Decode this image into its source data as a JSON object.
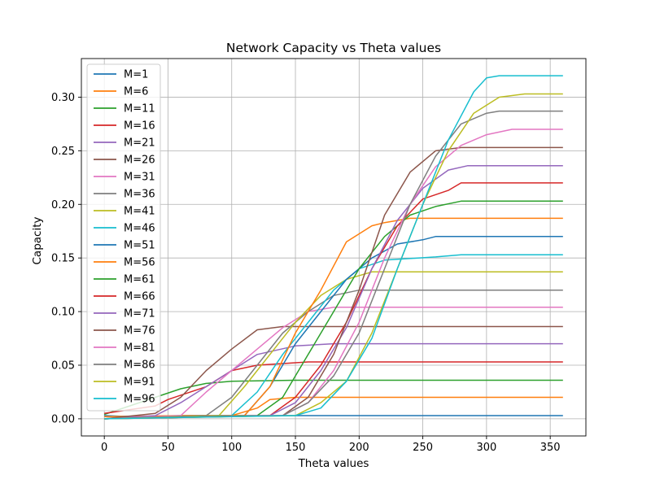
{
  "chart_data": {
    "type": "line",
    "title": "Network Capacity vs Theta values",
    "xlabel": "Theta values",
    "ylabel": "Capacity",
    "xlim": [
      -18,
      378
    ],
    "ylim": [
      -0.016,
      0.336
    ],
    "xticks": [
      0,
      50,
      100,
      150,
      200,
      250,
      300,
      350
    ],
    "xtick_labels": [
      "0",
      "50",
      "100",
      "150",
      "200",
      "250",
      "300",
      "350"
    ],
    "yticks": [
      0.0,
      0.05,
      0.1,
      0.15,
      0.2,
      0.25,
      0.3
    ],
    "ytick_labels": [
      "0.00",
      "0.05",
      "0.10",
      "0.15",
      "0.20",
      "0.25",
      "0.30"
    ],
    "grid": true,
    "legend_position": "upper-left",
    "colors": [
      "#1f77b4",
      "#ff7f0e",
      "#2ca02c",
      "#d62728",
      "#9467bd",
      "#8c564b",
      "#e377c2",
      "#7f7f7f",
      "#bcbd22",
      "#17becf"
    ],
    "series": [
      {
        "name": "M=1",
        "color": "#1f77b4",
        "points": [
          [
            0,
            0.003
          ],
          [
            20,
            0.002
          ],
          [
            60,
            0.003
          ],
          [
            120,
            0.003
          ],
          [
            200,
            0.003
          ],
          [
            360,
            0.003
          ]
        ]
      },
      {
        "name": "M=6",
        "color": "#ff7f0e",
        "points": [
          [
            0,
            0.002
          ],
          [
            60,
            0.003
          ],
          [
            100,
            0.003
          ],
          [
            120,
            0.01
          ],
          [
            130,
            0.018
          ],
          [
            150,
            0.02
          ],
          [
            360,
            0.02
          ]
        ]
      },
      {
        "name": "M=11",
        "color": "#2ca02c",
        "points": [
          [
            0,
            0.004
          ],
          [
            40,
            0.02
          ],
          [
            60,
            0.028
          ],
          [
            80,
            0.033
          ],
          [
            100,
            0.035
          ],
          [
            150,
            0.036
          ],
          [
            360,
            0.036
          ]
        ]
      },
      {
        "name": "M=16",
        "color": "#d62728",
        "points": [
          [
            0,
            0.005
          ],
          [
            40,
            0.012
          ],
          [
            50,
            0.018
          ],
          [
            80,
            0.03
          ],
          [
            100,
            0.045
          ],
          [
            120,
            0.05
          ],
          [
            160,
            0.053
          ],
          [
            360,
            0.053
          ]
        ]
      },
      {
        "name": "M=21",
        "color": "#9467bd",
        "points": [
          [
            0,
            0.0
          ],
          [
            40,
            0.003
          ],
          [
            60,
            0.015
          ],
          [
            80,
            0.03
          ],
          [
            100,
            0.045
          ],
          [
            120,
            0.06
          ],
          [
            150,
            0.068
          ],
          [
            180,
            0.07
          ],
          [
            360,
            0.07
          ]
        ]
      },
      {
        "name": "M=26",
        "color": "#8c564b",
        "points": [
          [
            0,
            0.0
          ],
          [
            40,
            0.005
          ],
          [
            60,
            0.02
          ],
          [
            80,
            0.045
          ],
          [
            100,
            0.065
          ],
          [
            120,
            0.083
          ],
          [
            140,
            0.086
          ],
          [
            360,
            0.086
          ]
        ]
      },
      {
        "name": "M=31",
        "color": "#e377c2",
        "points": [
          [
            0,
            0.0
          ],
          [
            60,
            0.003
          ],
          [
            80,
            0.025
          ],
          [
            100,
            0.045
          ],
          [
            120,
            0.065
          ],
          [
            140,
            0.085
          ],
          [
            160,
            0.1
          ],
          [
            180,
            0.104
          ],
          [
            360,
            0.104
          ]
        ]
      },
      {
        "name": "M=36",
        "color": "#7f7f7f",
        "points": [
          [
            0,
            0.0
          ],
          [
            80,
            0.003
          ],
          [
            100,
            0.02
          ],
          [
            120,
            0.05
          ],
          [
            140,
            0.08
          ],
          [
            160,
            0.1
          ],
          [
            180,
            0.115
          ],
          [
            200,
            0.12
          ],
          [
            360,
            0.12
          ]
        ]
      },
      {
        "name": "M=41",
        "color": "#bcbd22",
        "points": [
          [
            0,
            0.0
          ],
          [
            90,
            0.003
          ],
          [
            110,
            0.03
          ],
          [
            130,
            0.06
          ],
          [
            150,
            0.09
          ],
          [
            170,
            0.115
          ],
          [
            190,
            0.13
          ],
          [
            210,
            0.137
          ],
          [
            360,
            0.137
          ]
        ]
      },
      {
        "name": "M=46",
        "color": "#17becf",
        "points": [
          [
            0,
            0.0
          ],
          [
            100,
            0.003
          ],
          [
            120,
            0.025
          ],
          [
            140,
            0.06
          ],
          [
            160,
            0.09
          ],
          [
            180,
            0.12
          ],
          [
            200,
            0.14
          ],
          [
            220,
            0.148
          ],
          [
            260,
            0.151
          ],
          [
            280,
            0.153
          ],
          [
            360,
            0.153
          ]
        ]
      },
      {
        "name": "M=51",
        "color": "#1f77b4",
        "points": [
          [
            0,
            0.0
          ],
          [
            110,
            0.003
          ],
          [
            130,
            0.03
          ],
          [
            150,
            0.07
          ],
          [
            170,
            0.1
          ],
          [
            190,
            0.13
          ],
          [
            210,
            0.15
          ],
          [
            230,
            0.163
          ],
          [
            250,
            0.167
          ],
          [
            260,
            0.17
          ],
          [
            360,
            0.17
          ]
        ]
      },
      {
        "name": "M=56",
        "color": "#ff7f0e",
        "points": [
          [
            0,
            0.0
          ],
          [
            110,
            0.003
          ],
          [
            130,
            0.03
          ],
          [
            150,
            0.08
          ],
          [
            170,
            0.12
          ],
          [
            190,
            0.165
          ],
          [
            210,
            0.18
          ],
          [
            220,
            0.183
          ],
          [
            240,
            0.187
          ],
          [
            360,
            0.187
          ]
        ]
      },
      {
        "name": "M=61",
        "color": "#2ca02c",
        "points": [
          [
            0,
            0.0
          ],
          [
            120,
            0.003
          ],
          [
            140,
            0.02
          ],
          [
            160,
            0.06
          ],
          [
            180,
            0.1
          ],
          [
            200,
            0.14
          ],
          [
            220,
            0.17
          ],
          [
            240,
            0.19
          ],
          [
            260,
            0.198
          ],
          [
            280,
            0.203
          ],
          [
            360,
            0.203
          ]
        ]
      },
      {
        "name": "M=66",
        "color": "#d62728",
        "points": [
          [
            0,
            0.0
          ],
          [
            130,
            0.003
          ],
          [
            150,
            0.02
          ],
          [
            170,
            0.05
          ],
          [
            190,
            0.09
          ],
          [
            210,
            0.14
          ],
          [
            230,
            0.18
          ],
          [
            250,
            0.205
          ],
          [
            270,
            0.213
          ],
          [
            280,
            0.22
          ],
          [
            360,
            0.22
          ]
        ]
      },
      {
        "name": "M=71",
        "color": "#9467bd",
        "points": [
          [
            0,
            0.0
          ],
          [
            130,
            0.003
          ],
          [
            150,
            0.015
          ],
          [
            170,
            0.045
          ],
          [
            190,
            0.085
          ],
          [
            210,
            0.14
          ],
          [
            230,
            0.185
          ],
          [
            250,
            0.215
          ],
          [
            270,
            0.232
          ],
          [
            285,
            0.236
          ],
          [
            360,
            0.236
          ]
        ]
      },
      {
        "name": "M=76",
        "color": "#8c564b",
        "points": [
          [
            0,
            0.0
          ],
          [
            140,
            0.003
          ],
          [
            160,
            0.02
          ],
          [
            180,
            0.06
          ],
          [
            200,
            0.12
          ],
          [
            220,
            0.19
          ],
          [
            240,
            0.23
          ],
          [
            260,
            0.25
          ],
          [
            280,
            0.253
          ],
          [
            360,
            0.253
          ]
        ]
      },
      {
        "name": "M=81",
        "color": "#e377c2",
        "points": [
          [
            0,
            0.0
          ],
          [
            140,
            0.003
          ],
          [
            160,
            0.015
          ],
          [
            180,
            0.045
          ],
          [
            200,
            0.09
          ],
          [
            220,
            0.15
          ],
          [
            240,
            0.2
          ],
          [
            260,
            0.235
          ],
          [
            280,
            0.255
          ],
          [
            300,
            0.265
          ],
          [
            320,
            0.27
          ],
          [
            360,
            0.27
          ]
        ]
      },
      {
        "name": "M=86",
        "color": "#7f7f7f",
        "points": [
          [
            0,
            0.0
          ],
          [
            140,
            0.003
          ],
          [
            160,
            0.015
          ],
          [
            180,
            0.04
          ],
          [
            200,
            0.08
          ],
          [
            220,
            0.14
          ],
          [
            240,
            0.2
          ],
          [
            260,
            0.245
          ],
          [
            280,
            0.275
          ],
          [
            300,
            0.285
          ],
          [
            310,
            0.287
          ],
          [
            360,
            0.287
          ]
        ]
      },
      {
        "name": "M=91",
        "color": "#bcbd22",
        "points": [
          [
            0,
            0.0
          ],
          [
            150,
            0.003
          ],
          [
            170,
            0.015
          ],
          [
            190,
            0.035
          ],
          [
            210,
            0.08
          ],
          [
            230,
            0.14
          ],
          [
            250,
            0.2
          ],
          [
            270,
            0.25
          ],
          [
            290,
            0.285
          ],
          [
            310,
            0.3
          ],
          [
            330,
            0.303
          ],
          [
            360,
            0.303
          ]
        ]
      },
      {
        "name": "M=96",
        "color": "#17becf",
        "points": [
          [
            0,
            0.0
          ],
          [
            150,
            0.003
          ],
          [
            170,
            0.01
          ],
          [
            190,
            0.035
          ],
          [
            210,
            0.075
          ],
          [
            230,
            0.14
          ],
          [
            250,
            0.2
          ],
          [
            270,
            0.26
          ],
          [
            290,
            0.305
          ],
          [
            300,
            0.318
          ],
          [
            310,
            0.32
          ],
          [
            360,
            0.32
          ]
        ]
      }
    ]
  }
}
